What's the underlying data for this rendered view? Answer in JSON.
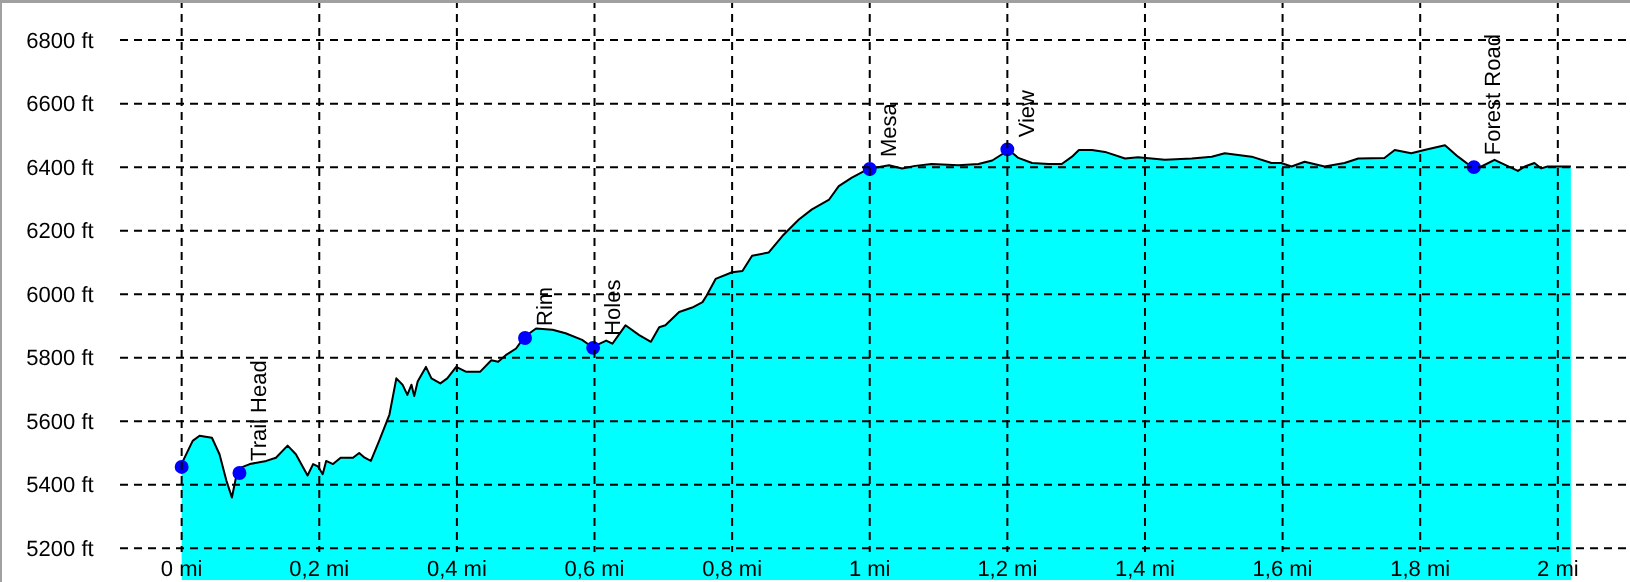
{
  "chart_data": {
    "type": "area",
    "xlim": [
      -0.264,
      2.102
    ],
    "ylim": [
      5100,
      6920
    ],
    "xticks": [
      {
        "value": 0,
        "label": "0 mi"
      },
      {
        "value": 0.2,
        "label": "0,2 mi"
      },
      {
        "value": 0.4,
        "label": "0,4 mi"
      },
      {
        "value": 0.6,
        "label": "0,6 mi"
      },
      {
        "value": 0.8,
        "label": "0,8 mi"
      },
      {
        "value": 1,
        "label": "1 mi"
      },
      {
        "value": 1.2,
        "label": "1,2 mi"
      },
      {
        "value": 1.4,
        "label": "1,4 mi"
      },
      {
        "value": 1.6,
        "label": "1,6 mi"
      },
      {
        "value": 1.8,
        "label": "1,8 mi"
      },
      {
        "value": 2,
        "label": "2 mi"
      }
    ],
    "yticks": [
      {
        "value": 5200,
        "label": "5200 ft"
      },
      {
        "value": 5400,
        "label": "5400 ft"
      },
      {
        "value": 5600,
        "label": "5600 ft"
      },
      {
        "value": 5800,
        "label": "5800 ft"
      },
      {
        "value": 6000,
        "label": "6000 ft"
      },
      {
        "value": 6200,
        "label": "6200 ft"
      },
      {
        "value": 6400,
        "label": "6400 ft"
      },
      {
        "value": 6600,
        "label": "6600 ft"
      },
      {
        "value": 6800,
        "label": "6800 ft"
      }
    ],
    "grid": true,
    "line_style": "dashed",
    "series": [
      {
        "color": "#00ffff",
        "x": [
          0,
          0.002,
          0.016,
          0.026,
          0.044,
          0.055,
          0.065,
          0.073,
          0.079,
          0.086,
          0.099,
          0.123,
          0.137,
          0.154,
          0.166,
          0.183,
          0.191,
          0.198,
          0.205,
          0.21,
          0.22,
          0.231,
          0.249,
          0.258,
          0.266,
          0.275,
          0.287,
          0.302,
          0.312,
          0.321,
          0.328,
          0.334,
          0.338,
          0.343,
          0.355,
          0.363,
          0.376,
          0.386,
          0.399,
          0.413,
          0.434,
          0.45,
          0.46,
          0.471,
          0.486,
          0.498,
          0.515,
          0.539,
          0.558,
          0.582,
          0.597,
          0.617,
          0.626,
          0.645,
          0.665,
          0.682,
          0.694,
          0.703,
          0.723,
          0.742,
          0.757,
          0.763,
          0.776,
          0.8,
          0.815,
          0.829,
          0.853,
          0.873,
          0.897,
          0.916,
          0.941,
          0.955,
          0.974,
          0.996,
          1.012,
          1.028,
          1.047,
          1.066,
          1.09,
          1.129,
          1.158,
          1.178,
          1.202,
          1.216,
          1.236,
          1.26,
          1.279,
          1.294,
          1.304,
          1.323,
          1.342,
          1.371,
          1.39,
          1.429,
          1.468,
          1.497,
          1.516,
          1.555,
          1.584,
          1.598,
          1.613,
          1.632,
          1.661,
          1.69,
          1.71,
          1.748,
          1.763,
          1.787,
          1.806,
          1.836,
          1.855,
          1.874,
          1.889,
          1.908,
          1.942,
          1.952,
          1.966,
          1.976,
          1.985,
          2.019
        ],
        "values": [
          5454,
          5475,
          5538,
          5554,
          5548,
          5496,
          5413,
          5360,
          5423,
          5454,
          5465,
          5475,
          5485,
          5523,
          5496,
          5429,
          5465,
          5458,
          5433,
          5475,
          5465,
          5485,
          5485,
          5500,
          5485,
          5475,
          5538,
          5621,
          5735,
          5715,
          5683,
          5715,
          5679,
          5725,
          5771,
          5735,
          5719,
          5735,
          5771,
          5756,
          5756,
          5792,
          5787,
          5808,
          5829,
          5865,
          5892,
          5888,
          5877,
          5856,
          5833,
          5854,
          5844,
          5902,
          5871,
          5850,
          5896,
          5902,
          5944,
          5958,
          5975,
          5996,
          6048,
          6069,
          6073,
          6121,
          6131,
          6183,
          6235,
          6267,
          6298,
          6340,
          6367,
          6392,
          6400,
          6406,
          6396,
          6404,
          6410,
          6406,
          6410,
          6421,
          6454,
          6429,
          6413,
          6410,
          6410,
          6433,
          6454,
          6454,
          6448,
          6427,
          6431,
          6423,
          6427,
          6433,
          6444,
          6433,
          6413,
          6413,
          6402,
          6417,
          6402,
          6413,
          6427,
          6429,
          6454,
          6444,
          6454,
          6469,
          6433,
          6402,
          6402,
          6423,
          6388,
          6402,
          6413,
          6396,
          6402,
          6402
        ]
      },
      {
        "type": "scatter",
        "color": "#0000ff",
        "marker": "circle",
        "x": [
          0,
          0.084,
          0.499,
          0.598,
          1.0,
          1.2,
          1.878
        ],
        "values": [
          5456,
          5437,
          5862,
          5831,
          6394,
          6456,
          6400
        ]
      }
    ],
    "annotations": [
      {
        "text": "Trail Head",
        "x": 0.084,
        "y": 5437
      },
      {
        "text": "Rim",
        "x": 0.499,
        "y": 5862
      },
      {
        "text": "Holes",
        "x": 0.598,
        "y": 5831
      },
      {
        "text": "Mesa",
        "x": 1.0,
        "y": 6394
      },
      {
        "text": "View",
        "x": 1.2,
        "y": 6456
      },
      {
        "text": "Forest Road",
        "x": 1.878,
        "y": 6400
      }
    ]
  }
}
